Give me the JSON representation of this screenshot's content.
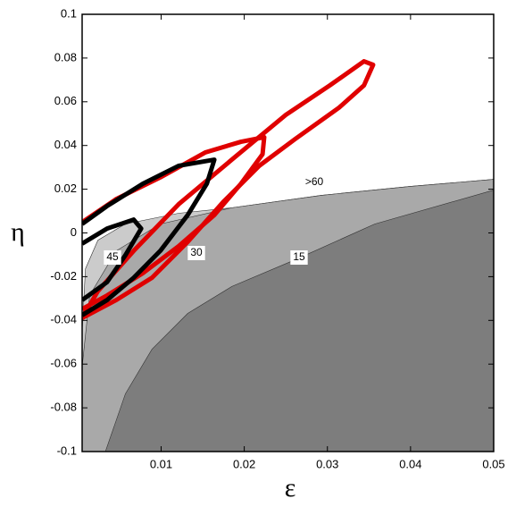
{
  "chart_data": {
    "type": "contour",
    "xlabel": "ε",
    "ylabel": "η",
    "xlim": [
      0.0005,
      0.05
    ],
    "ylim": [
      -0.1,
      0.1
    ],
    "xticks": [
      0.01,
      0.02,
      0.03,
      0.04,
      0.05
    ],
    "yticks": [
      -0.1,
      -0.08,
      -0.06,
      -0.04,
      -0.02,
      0,
      0.02,
      0.04,
      0.06,
      0.08,
      0.1
    ],
    "regions": [
      {
        "name": ">60",
        "color": "#ffffff"
      },
      {
        "name": "45",
        "color": "#cbcbcb",
        "x": [
          0.0005,
          0.0009,
          0.0024,
          0.0057,
          0.0121,
          0.0185,
          0.0293,
          0.04,
          0.05
        ],
        "y": [
          -0.045,
          -0.0164,
          -0.0033,
          0.0041,
          0.009,
          0.0115,
          0.0172,
          0.0213,
          0.0245
        ]
      },
      {
        "name": "30",
        "color": "#a9a9a9",
        "x": [
          0.0005,
          0.0014,
          0.0046,
          0.0099,
          0.0185,
          0.0293,
          0.04,
          0.05
        ],
        "y": [
          -0.0613,
          -0.0286,
          -0.0082,
          0.0041,
          0.0115,
          0.0172,
          0.0213,
          0.0245
        ]
      },
      {
        "name": "15",
        "color": "#7d7d7d",
        "x": [
          0.0033,
          0.0057,
          0.0089,
          0.0132,
          0.0185,
          0.0261,
          0.0357,
          0.05
        ],
        "y": [
          -0.1,
          -0.0736,
          -0.0532,
          -0.0368,
          -0.0245,
          -0.0123,
          0.0041,
          0.0196
        ]
      }
    ],
    "series": [
      {
        "color": "#e00000",
        "x": [
          0.0005,
          0.0024,
          0.0067,
          0.0121,
          0.0185,
          0.025,
          0.0303,
          0.0344,
          0.0355,
          0.0344,
          0.0314,
          0.0261,
          0.0218,
          0.0175,
          0.0132,
          0.0089,
          0.0046,
          0.0005
        ],
        "y": [
          -0.0389,
          -0.0266,
          -0.0082,
          0.0131,
          0.0335,
          0.054,
          0.0675,
          0.0785,
          0.0769,
          0.0675,
          0.0573,
          0.0429,
          0.0307,
          0.0143,
          -0.0041,
          -0.0205,
          -0.0307,
          -0.0389
        ]
      },
      {
        "color": "#e00000",
        "x": [
          0.0005,
          0.0046,
          0.0099,
          0.0153,
          0.0196,
          0.0224,
          0.0222,
          0.0196,
          0.0164,
          0.0121,
          0.0078,
          0.0035,
          0.0005
        ],
        "y": [
          0.0049,
          0.0155,
          0.0254,
          0.0368,
          0.0417,
          0.0438,
          0.036,
          0.0225,
          0.0082,
          -0.0061,
          -0.0184,
          -0.0286,
          -0.0348
        ]
      },
      {
        "color": "#000000",
        "x": [
          0.0005,
          0.0035,
          0.0078,
          0.0121,
          0.0164,
          0.0155,
          0.0132,
          0.0099,
          0.0067,
          0.0035,
          0.0005
        ],
        "y": [
          0.0041,
          0.0123,
          0.0225,
          0.0307,
          0.0335,
          0.0225,
          0.0082,
          -0.0082,
          -0.0205,
          -0.0307,
          -0.0376
        ]
      },
      {
        "color": "#000000",
        "x": [
          0.0005,
          0.0035,
          0.0067,
          0.0076,
          0.0057,
          0.0035,
          0.0005
        ],
        "y": [
          -0.0049,
          0.002,
          0.0061,
          0.002,
          -0.0102,
          -0.0225,
          -0.0307
        ]
      }
    ]
  }
}
